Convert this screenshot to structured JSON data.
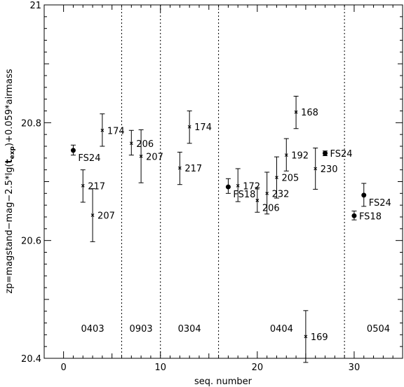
{
  "chart_data": {
    "type": "scatter",
    "xlabel": "seq. number",
    "ylabel_parts": [
      "zp=magstand−mag−2.5*lg(",
      "t",
      "exp",
      ")+0.059*airmass"
    ],
    "xlim": [
      -2,
      35
    ],
    "ylim": [
      20.4,
      21.0
    ],
    "x_ticks": [
      0,
      10,
      20,
      30
    ],
    "x_tick_labels": [
      "0",
      "10",
      "20",
      "30"
    ],
    "y_ticks": [
      20.4,
      20.6,
      20.8,
      21.0
    ],
    "y_tick_labels": [
      "20.4",
      "20.6",
      "20.8",
      "21"
    ],
    "separators": [
      6,
      10,
      16,
      29
    ],
    "region_labels": [
      {
        "text": "0403",
        "x": 3
      },
      {
        "text": "0903",
        "x": 8
      },
      {
        "text": "0304",
        "x": 13
      },
      {
        "text": "0404",
        "x": 22.5
      },
      {
        "text": "0504",
        "x": 32.5
      }
    ],
    "region_label_y": 20.445,
    "points": [
      {
        "x": 1,
        "y": 20.753,
        "err_lo": 20.745,
        "err_hi": 20.762,
        "label": "FS24",
        "marker": "dot",
        "label_pos": "below-right"
      },
      {
        "x": 2,
        "y": 20.693,
        "err_lo": 20.665,
        "err_hi": 20.72,
        "label": "217",
        "marker": "cross",
        "label_pos": "right"
      },
      {
        "x": 3,
        "y": 20.643,
        "err_lo": 20.598,
        "err_hi": 20.688,
        "label": "207",
        "marker": "cross",
        "label_pos": "right"
      },
      {
        "x": 4,
        "y": 20.787,
        "err_lo": 20.76,
        "err_hi": 20.815,
        "label": "174",
        "marker": "cross",
        "label_pos": "right"
      },
      {
        "x": 7,
        "y": 20.765,
        "err_lo": 20.745,
        "err_hi": 20.787,
        "label": "206",
        "marker": "cross",
        "label_pos": "right"
      },
      {
        "x": 8,
        "y": 20.743,
        "err_lo": 20.698,
        "err_hi": 20.788,
        "label": "207",
        "marker": "cross",
        "label_pos": "right"
      },
      {
        "x": 12,
        "y": 20.723,
        "err_lo": 20.695,
        "err_hi": 20.75,
        "label": "217",
        "marker": "cross",
        "label_pos": "right"
      },
      {
        "x": 13,
        "y": 20.793,
        "err_lo": 20.765,
        "err_hi": 20.82,
        "label": "174",
        "marker": "cross",
        "label_pos": "right"
      },
      {
        "x": 17,
        "y": 20.691,
        "err_lo": 20.68,
        "err_hi": 20.705,
        "label": "FS18",
        "marker": "dot",
        "label_pos": "below-right"
      },
      {
        "x": 18,
        "y": 20.693,
        "err_lo": 20.666,
        "err_hi": 20.722,
        "label": "172",
        "marker": "cross",
        "label_pos": "right"
      },
      {
        "x": 20,
        "y": 20.668,
        "err_lo": 20.648,
        "err_hi": 20.69,
        "label": "206",
        "marker": "cross",
        "label_pos": "below-right"
      },
      {
        "x": 21,
        "y": 20.68,
        "err_lo": 20.645,
        "err_hi": 20.716,
        "label": "232",
        "marker": "cross",
        "label_pos": "right"
      },
      {
        "x": 22,
        "y": 20.707,
        "err_lo": 20.672,
        "err_hi": 20.742,
        "label": "205",
        "marker": "cross",
        "label_pos": "right"
      },
      {
        "x": 23,
        "y": 20.745,
        "err_lo": 20.718,
        "err_hi": 20.773,
        "label": "192",
        "marker": "cross",
        "label_pos": "right"
      },
      {
        "x": 24,
        "y": 20.818,
        "err_lo": 20.79,
        "err_hi": 20.845,
        "label": "168",
        "marker": "cross",
        "label_pos": "right"
      },
      {
        "x": 25,
        "y": 20.437,
        "err_lo": 20.393,
        "err_hi": 20.481,
        "label": "169",
        "marker": "cross",
        "label_pos": "right"
      },
      {
        "x": 26,
        "y": 20.722,
        "err_lo": 20.687,
        "err_hi": 20.757,
        "label": "230",
        "marker": "cross",
        "label_pos": "right"
      },
      {
        "x": 27,
        "y": 20.748,
        "err_lo": 20.744,
        "err_hi": 20.752,
        "label": "FS24",
        "marker": "dot",
        "label_pos": "right"
      },
      {
        "x": 30,
        "y": 20.642,
        "err_lo": 20.635,
        "err_hi": 20.65,
        "label": "FS18",
        "marker": "dot",
        "label_pos": "right"
      },
      {
        "x": 31,
        "y": 20.677,
        "err_lo": 20.658,
        "err_hi": 20.697,
        "label": "FS24",
        "marker": "dot",
        "label_pos": "below-right"
      }
    ]
  }
}
